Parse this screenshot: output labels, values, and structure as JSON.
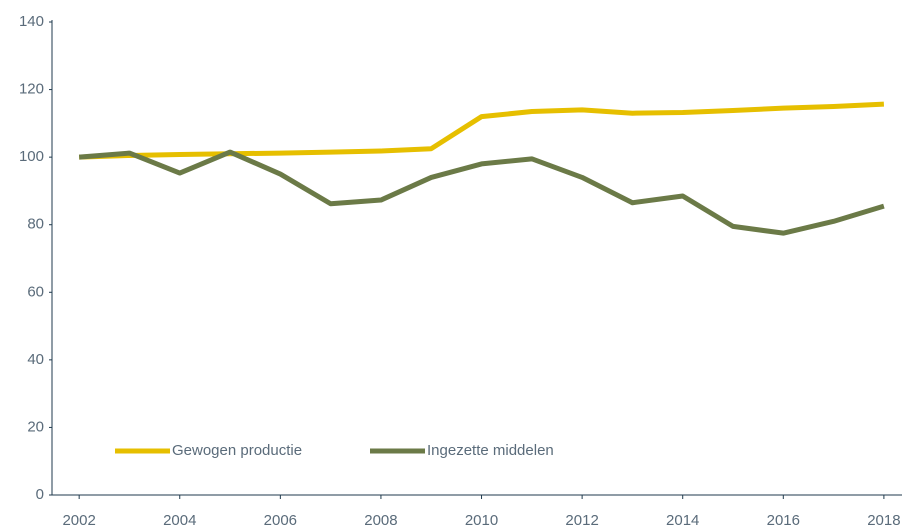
{
  "chart_data": {
    "type": "line",
    "x": [
      2002,
      2003,
      2004,
      2005,
      2006,
      2007,
      2008,
      2009,
      2010,
      2011,
      2012,
      2013,
      2014,
      2015,
      2016,
      2017,
      2018
    ],
    "series": [
      {
        "name": "Gewogen productie",
        "color": "#e6bf00",
        "values": [
          100,
          100.5,
          100.8,
          101,
          101.2,
          101.5,
          101.8,
          102.5,
          112,
          113.5,
          114,
          113,
          113.2,
          113.8,
          114.5,
          115,
          115.7
        ]
      },
      {
        "name": "Ingezette middelen",
        "color": "#6b7a47",
        "values": [
          100,
          101.2,
          95.3,
          101.5,
          95,
          86.2,
          87.3,
          94,
          98,
          99.5,
          94,
          86.5,
          88.5,
          79.5,
          77.5,
          81,
          85.5
        ]
      }
    ],
    "xlim": [
      2001.46,
      2018.36
    ],
    "xticks": [
      2002,
      2004,
      2006,
      2008,
      2010,
      2012,
      2014,
      2016,
      2018
    ],
    "ylim": [
      0,
      140
    ],
    "yticks": [
      0,
      20,
      40,
      60,
      80,
      100,
      120,
      140
    ],
    "grid": false,
    "legend": "bottom-left"
  }
}
